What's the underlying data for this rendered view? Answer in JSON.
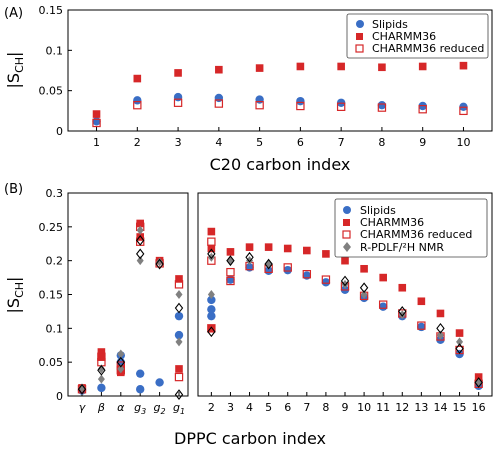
{
  "colors": {
    "slipids": "#3a6ec5",
    "charmm36": "#d62728",
    "reduced": "#d62728",
    "nmr_gray": "#808080",
    "nmr_open": "#000000"
  },
  "panel_labels": {
    "a": "(A)",
    "b": "(B)"
  },
  "legend_a": [
    {
      "key": "slipids",
      "label": "Slipids",
      "marker": "circle"
    },
    {
      "key": "charmm36",
      "label": "CHARMM36",
      "marker": "square"
    },
    {
      "key": "reduced",
      "label": "CHARMM36 reduced",
      "marker": "open-square"
    }
  ],
  "legend_b": [
    {
      "key": "slipids",
      "label": "Slipids",
      "marker": "circle"
    },
    {
      "key": "charmm36",
      "label": "CHARMM36",
      "marker": "square"
    },
    {
      "key": "reduced",
      "label": "CHARMM36 reduced",
      "marker": "open-square"
    },
    {
      "key": "nmr",
      "label": "R-PDLF/²H NMR",
      "marker": "diamond"
    }
  ],
  "chart_data": [
    {
      "id": "A",
      "type": "scatter",
      "title": "",
      "xlabel": "C20 carbon index",
      "ylabel": "|S_CH|",
      "xlim": [
        0.3,
        10.7
      ],
      "ylim": [
        0,
        0.15
      ],
      "xticks": [
        1,
        2,
        3,
        4,
        5,
        6,
        7,
        8,
        9,
        10
      ],
      "yticks": [
        0,
        0.05,
        0.1,
        0.15
      ],
      "ytick_labels": [
        "0",
        "0.05",
        "0.1",
        "0.15"
      ],
      "legend_position": "top-right",
      "grid": false,
      "x": [
        1,
        2,
        3,
        4,
        5,
        6,
        7,
        8,
        9,
        10
      ],
      "series": [
        {
          "name": "Slipids",
          "key": "slipids",
          "values": [
            0.012,
            0.038,
            0.042,
            0.041,
            0.039,
            0.037,
            0.035,
            0.032,
            0.031,
            0.03
          ]
        },
        {
          "name": "CHARMM36",
          "key": "charmm36",
          "values": [
            0.021,
            0.065,
            0.072,
            0.076,
            0.078,
            0.08,
            0.08,
            0.079,
            0.08,
            0.081
          ]
        },
        {
          "name": "CHARMM36 reduced",
          "key": "reduced",
          "values": [
            0.01,
            0.032,
            0.035,
            0.034,
            0.032,
            0.031,
            0.03,
            0.029,
            0.027,
            0.025
          ]
        }
      ]
    },
    {
      "id": "B-left",
      "type": "scatter",
      "title": "",
      "xlabel": "",
      "ylabel": "|S_CH|",
      "ylim": [
        0,
        0.3
      ],
      "yticks": [
        0,
        0.05,
        0.1,
        0.15,
        0.2,
        0.25,
        0.3
      ],
      "ytick_labels": [
        "0",
        "0.05",
        "0.1",
        "0.15",
        "0.2",
        "0.25",
        "0.3"
      ],
      "categories": [
        "γ",
        "β",
        "α",
        "g3",
        "g2",
        "g1"
      ],
      "grid": false,
      "points": [
        {
          "series": "slipids",
          "x": "γ",
          "y": 0.008
        },
        {
          "series": "slipids",
          "x": "β",
          "y": 0.012
        },
        {
          "series": "slipids",
          "x": "α",
          "y": 0.06
        },
        {
          "series": "slipids",
          "x": "α",
          "y": 0.05
        },
        {
          "series": "slipids",
          "x": "g3",
          "y": 0.033
        },
        {
          "series": "slipids",
          "x": "g3",
          "y": 0.01
        },
        {
          "series": "slipids",
          "x": "g2",
          "y": 0.02
        },
        {
          "series": "slipids",
          "x": "g1",
          "y": 0.118
        },
        {
          "series": "slipids",
          "x": "g1",
          "y": 0.09
        },
        {
          "series": "charmm36",
          "x": "γ",
          "y": 0.012
        },
        {
          "series": "charmm36",
          "x": "β",
          "y": 0.065
        },
        {
          "series": "charmm36",
          "x": "β",
          "y": 0.058
        },
        {
          "series": "charmm36",
          "x": "α",
          "y": 0.04
        },
        {
          "series": "charmm36",
          "x": "α",
          "y": 0.035
        },
        {
          "series": "charmm36",
          "x": "g3",
          "y": 0.255
        },
        {
          "series": "charmm36",
          "x": "g3",
          "y": 0.235
        },
        {
          "series": "charmm36",
          "x": "g2",
          "y": 0.2
        },
        {
          "series": "charmm36",
          "x": "g1",
          "y": 0.173
        },
        {
          "series": "charmm36",
          "x": "g1",
          "y": 0.04
        },
        {
          "series": "reduced",
          "x": "γ",
          "y": 0.01
        },
        {
          "series": "reduced",
          "x": "β",
          "y": 0.058
        },
        {
          "series": "reduced",
          "x": "β",
          "y": 0.05
        },
        {
          "series": "reduced",
          "x": "α",
          "y": 0.045
        },
        {
          "series": "reduced",
          "x": "α",
          "y": 0.038
        },
        {
          "series": "reduced",
          "x": "g3",
          "y": 0.25
        },
        {
          "series": "reduced",
          "x": "g3",
          "y": 0.228
        },
        {
          "series": "reduced",
          "x": "g2",
          "y": 0.196
        },
        {
          "series": "reduced",
          "x": "g1",
          "y": 0.165
        },
        {
          "series": "reduced",
          "x": "g1",
          "y": 0.028
        },
        {
          "series": "nmr_gray",
          "x": "γ",
          "y": 0.012
        },
        {
          "series": "nmr_gray",
          "x": "β",
          "y": 0.04
        },
        {
          "series": "nmr_gray",
          "x": "β",
          "y": 0.025
        },
        {
          "series": "nmr_gray",
          "x": "α",
          "y": 0.062
        },
        {
          "series": "nmr_gray",
          "x": "α",
          "y": 0.04
        },
        {
          "series": "nmr_gray",
          "x": "g3",
          "y": 0.245
        },
        {
          "series": "nmr_gray",
          "x": "g3",
          "y": 0.2
        },
        {
          "series": "nmr_gray",
          "x": "g2",
          "y": 0.198
        },
        {
          "series": "nmr_gray",
          "x": "g1",
          "y": 0.15
        },
        {
          "series": "nmr_gray",
          "x": "g1",
          "y": 0.08
        },
        {
          "series": "nmr_open",
          "x": "γ",
          "y": 0.01
        },
        {
          "series": "nmr_open",
          "x": "β",
          "y": 0.038
        },
        {
          "series": "nmr_open",
          "x": "α",
          "y": 0.05
        },
        {
          "series": "nmr_open",
          "x": "g3",
          "y": 0.23
        },
        {
          "series": "nmr_open",
          "x": "g3",
          "y": 0.21
        },
        {
          "series": "nmr_open",
          "x": "g2",
          "y": 0.195
        },
        {
          "series": "nmr_open",
          "x": "g1",
          "y": 0.13
        },
        {
          "series": "nmr_open",
          "x": "g1",
          "y": 0.002
        }
      ]
    },
    {
      "id": "B-right",
      "type": "scatter",
      "title": "",
      "xlabel": "DPPC carbon index",
      "xlim": [
        1.3,
        16.7
      ],
      "ylim": [
        0,
        0.3
      ],
      "xticks": [
        2,
        3,
        4,
        5,
        6,
        7,
        8,
        9,
        10,
        11,
        12,
        13,
        14,
        15,
        16
      ],
      "legend_position": "top-right",
      "grid": false,
      "points": [
        {
          "series": "charmm36",
          "x": 2,
          "y": 0.243
        },
        {
          "series": "charmm36",
          "x": 2,
          "y": 0.218
        },
        {
          "series": "charmm36",
          "x": 2,
          "y": 0.1
        },
        {
          "series": "charmm36",
          "x": 3,
          "y": 0.213
        },
        {
          "series": "charmm36",
          "x": 4,
          "y": 0.22
        },
        {
          "series": "charmm36",
          "x": 5,
          "y": 0.22
        },
        {
          "series": "charmm36",
          "x": 6,
          "y": 0.218
        },
        {
          "series": "charmm36",
          "x": 7,
          "y": 0.215
        },
        {
          "series": "charmm36",
          "x": 8,
          "y": 0.21
        },
        {
          "series": "charmm36",
          "x": 9,
          "y": 0.2
        },
        {
          "series": "charmm36",
          "x": 10,
          "y": 0.188
        },
        {
          "series": "charmm36",
          "x": 11,
          "y": 0.175
        },
        {
          "series": "charmm36",
          "x": 12,
          "y": 0.16
        },
        {
          "series": "charmm36",
          "x": 13,
          "y": 0.14
        },
        {
          "series": "charmm36",
          "x": 14,
          "y": 0.122
        },
        {
          "series": "charmm36",
          "x": 15,
          "y": 0.093
        },
        {
          "series": "charmm36",
          "x": 16,
          "y": 0.028
        },
        {
          "series": "reduced",
          "x": 2,
          "y": 0.228
        },
        {
          "series": "reduced",
          "x": 2,
          "y": 0.2
        },
        {
          "series": "reduced",
          "x": 2,
          "y": 0.1
        },
        {
          "series": "reduced",
          "x": 3,
          "y": 0.183
        },
        {
          "series": "reduced",
          "x": 3,
          "y": 0.17
        },
        {
          "series": "reduced",
          "x": 4,
          "y": 0.192
        },
        {
          "series": "reduced",
          "x": 5,
          "y": 0.188
        },
        {
          "series": "reduced",
          "x": 6,
          "y": 0.19
        },
        {
          "series": "reduced",
          "x": 7,
          "y": 0.18
        },
        {
          "series": "reduced",
          "x": 8,
          "y": 0.172
        },
        {
          "series": "reduced",
          "x": 9,
          "y": 0.162
        },
        {
          "series": "reduced",
          "x": 10,
          "y": 0.148
        },
        {
          "series": "reduced",
          "x": 11,
          "y": 0.135
        },
        {
          "series": "reduced",
          "x": 12,
          "y": 0.122
        },
        {
          "series": "reduced",
          "x": 13,
          "y": 0.104
        },
        {
          "series": "reduced",
          "x": 14,
          "y": 0.088
        },
        {
          "series": "reduced",
          "x": 15,
          "y": 0.068
        },
        {
          "series": "reduced",
          "x": 16,
          "y": 0.018
        },
        {
          "series": "slipids",
          "x": 2,
          "y": 0.142
        },
        {
          "series": "slipids",
          "x": 2,
          "y": 0.128
        },
        {
          "series": "slipids",
          "x": 2,
          "y": 0.118
        },
        {
          "series": "slipids",
          "x": 3,
          "y": 0.172
        },
        {
          "series": "slipids",
          "x": 4,
          "y": 0.19
        },
        {
          "series": "slipids",
          "x": 5,
          "y": 0.185
        },
        {
          "series": "slipids",
          "x": 6,
          "y": 0.186
        },
        {
          "series": "slipids",
          "x": 7,
          "y": 0.178
        },
        {
          "series": "slipids",
          "x": 8,
          "y": 0.168
        },
        {
          "series": "slipids",
          "x": 9,
          "y": 0.157
        },
        {
          "series": "slipids",
          "x": 10,
          "y": 0.145
        },
        {
          "series": "slipids",
          "x": 11,
          "y": 0.132
        },
        {
          "series": "slipids",
          "x": 12,
          "y": 0.118
        },
        {
          "series": "slipids",
          "x": 13,
          "y": 0.102
        },
        {
          "series": "slipids",
          "x": 14,
          "y": 0.083
        },
        {
          "series": "slipids",
          "x": 15,
          "y": 0.062
        },
        {
          "series": "slipids",
          "x": 16,
          "y": 0.015
        },
        {
          "series": "nmr_gray",
          "x": 2,
          "y": 0.205
        },
        {
          "series": "nmr_gray",
          "x": 2,
          "y": 0.15
        },
        {
          "series": "nmr_gray",
          "x": 3,
          "y": 0.2
        },
        {
          "series": "nmr_gray",
          "x": 4,
          "y": 0.2
        },
        {
          "series": "nmr_gray",
          "x": 5,
          "y": 0.195
        },
        {
          "series": "nmr_gray",
          "x": 9,
          "y": 0.165
        },
        {
          "series": "nmr_gray",
          "x": 10,
          "y": 0.15
        },
        {
          "series": "nmr_gray",
          "x": 12,
          "y": 0.12
        },
        {
          "series": "nmr_gray",
          "x": 14,
          "y": 0.09
        },
        {
          "series": "nmr_gray",
          "x": 15,
          "y": 0.08
        },
        {
          "series": "nmr_gray",
          "x": 16,
          "y": 0.02
        },
        {
          "series": "nmr_open",
          "x": 2,
          "y": 0.21
        },
        {
          "series": "nmr_open",
          "x": 2,
          "y": 0.095
        },
        {
          "series": "nmr_open",
          "x": 3,
          "y": 0.2
        },
        {
          "series": "nmr_open",
          "x": 4,
          "y": 0.205
        },
        {
          "series": "nmr_open",
          "x": 5,
          "y": 0.195
        },
        {
          "series": "nmr_open",
          "x": 9,
          "y": 0.17
        },
        {
          "series": "nmr_open",
          "x": 10,
          "y": 0.16
        },
        {
          "series": "nmr_open",
          "x": 12,
          "y": 0.125
        },
        {
          "series": "nmr_open",
          "x": 14,
          "y": 0.1
        },
        {
          "series": "nmr_open",
          "x": 15,
          "y": 0.07
        },
        {
          "series": "nmr_open",
          "x": 16,
          "y": 0.02
        }
      ]
    }
  ]
}
